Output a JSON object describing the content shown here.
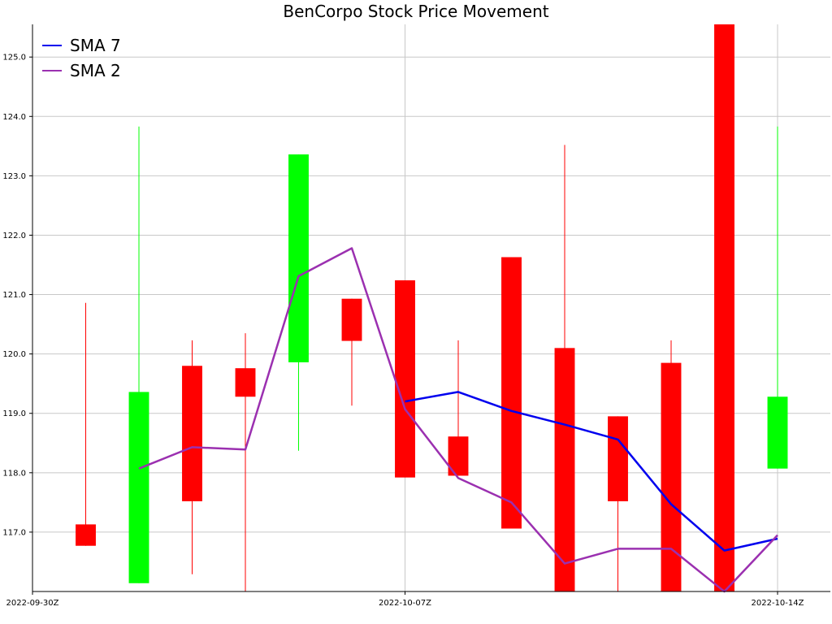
{
  "chart_data": {
    "type": "candlestick",
    "title": "BenCorpo Stock Price Movement",
    "xlabel": "",
    "ylabel": "",
    "grid": true,
    "legend_position": "top-left",
    "x_range": [
      "2022-09-30",
      "2022-10-14"
    ],
    "y_range": [
      116.0,
      125.55
    ],
    "x_ticks": [
      {
        "date": "2022-09-30",
        "label": "2022-09-30Z"
      },
      {
        "date": "2022-10-07",
        "label": "2022-10-07Z"
      },
      {
        "date": "2022-10-14",
        "label": "2022-10-14Z"
      }
    ],
    "y_ticks": [
      117.0,
      118.0,
      119.0,
      120.0,
      121.0,
      122.0,
      123.0,
      124.0,
      125.0
    ],
    "colors": {
      "up": "#00ff00",
      "down": "#ff0000",
      "grid": "#c8c8c8"
    },
    "candles": [
      {
        "date": "2022-10-01",
        "open": 117.13,
        "high": 120.86,
        "low": 116.77,
        "close": 116.77
      },
      {
        "date": "2022-10-02",
        "open": 116.14,
        "high": 123.83,
        "low": 116.14,
        "close": 119.36
      },
      {
        "date": "2022-10-03",
        "open": 119.8,
        "high": 120.23,
        "low": 116.29,
        "close": 117.52
      },
      {
        "date": "2022-10-04",
        "open": 119.76,
        "high": 120.35,
        "low": 116.0,
        "close": 119.28
      },
      {
        "date": "2022-10-05",
        "open": 119.86,
        "high": 123.36,
        "low": 118.37,
        "close": 123.36
      },
      {
        "date": "2022-10-06",
        "open": 120.93,
        "high": 120.93,
        "low": 119.13,
        "close": 120.22
      },
      {
        "date": "2022-10-07",
        "open": 121.24,
        "high": 121.24,
        "low": 117.92,
        "close": 117.92
      },
      {
        "date": "2022-10-08",
        "open": 118.61,
        "high": 120.23,
        "low": 117.95,
        "close": 117.95
      },
      {
        "date": "2022-10-09",
        "open": 121.63,
        "high": 121.63,
        "low": 117.06,
        "close": 117.06
      },
      {
        "date": "2022-10-10",
        "open": 120.1,
        "high": 123.52,
        "low": 116.0,
        "close": 116.0
      },
      {
        "date": "2022-10-11",
        "open": 118.95,
        "high": 118.95,
        "low": 116.0,
        "close": 117.52
      },
      {
        "date": "2022-10-12",
        "open": 119.85,
        "high": 120.23,
        "low": 116.0,
        "close": 116.0
      },
      {
        "date": "2022-10-13",
        "open": 125.55,
        "high": 125.55,
        "low": 116.0,
        "close": 116.0
      },
      {
        "date": "2022-10-14",
        "open": 118.07,
        "high": 123.83,
        "low": 118.07,
        "close": 119.28
      }
    ],
    "series": [
      {
        "name": "SMA 7",
        "color": "#0000ee",
        "points": [
          {
            "x": "2022-10-07",
            "y": 119.2
          },
          {
            "x": "2022-10-08",
            "y": 119.36
          },
          {
            "x": "2022-10-09",
            "y": 119.04
          },
          {
            "x": "2022-10-10",
            "y": 118.81
          },
          {
            "x": "2022-10-11",
            "y": 118.56
          },
          {
            "x": "2022-10-12",
            "y": 117.47
          },
          {
            "x": "2022-10-13",
            "y": 116.69
          },
          {
            "x": "2022-10-14",
            "y": 116.89
          }
        ]
      },
      {
        "name": "SMA 2",
        "color": "#9b30b0",
        "points": [
          {
            "x": "2022-10-02",
            "y": 118.07
          },
          {
            "x": "2022-10-03",
            "y": 118.43
          },
          {
            "x": "2022-10-04",
            "y": 118.39
          },
          {
            "x": "2022-10-05",
            "y": 121.31
          },
          {
            "x": "2022-10-06",
            "y": 121.78
          },
          {
            "x": "2022-10-07",
            "y": 119.07
          },
          {
            "x": "2022-10-08",
            "y": 117.91
          },
          {
            "x": "2022-10-09",
            "y": 117.5
          },
          {
            "x": "2022-10-10",
            "y": 116.47
          },
          {
            "x": "2022-10-11",
            "y": 116.72
          },
          {
            "x": "2022-10-12",
            "y": 116.72
          },
          {
            "x": "2022-10-13",
            "y": 116.0
          },
          {
            "x": "2022-10-14",
            "y": 116.95
          }
        ]
      }
    ]
  }
}
